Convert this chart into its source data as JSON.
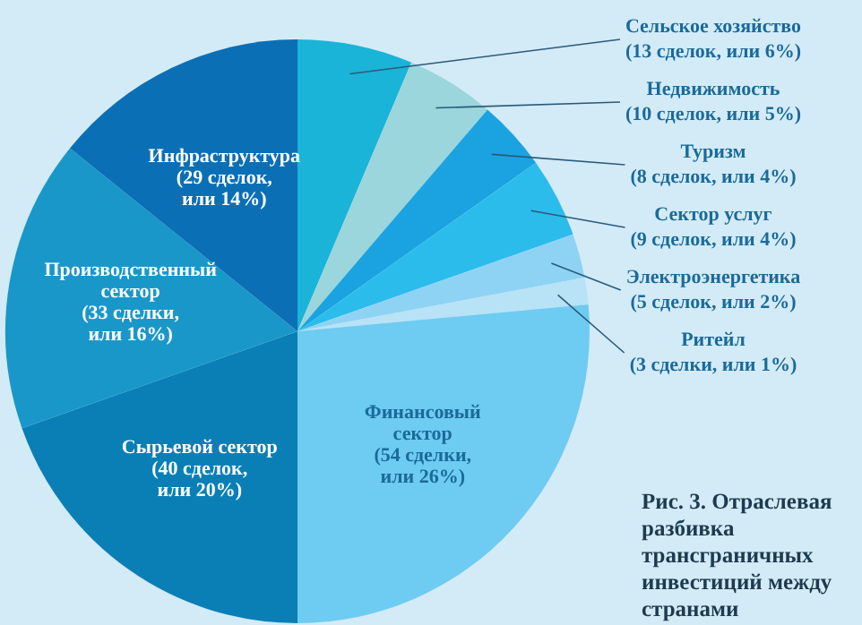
{
  "chart_data": {
    "type": "pie",
    "categories": [
      "Сельское хозяйство",
      "Недвижимость",
      "Туризм",
      "Сектор услуг",
      "Электроэнергетика",
      "Ритейл",
      "Финансовый сектор",
      "Сырьевой сектор",
      "Производственный сектор",
      "Инфраструктура"
    ],
    "values": [
      13,
      10,
      8,
      9,
      5,
      3,
      54,
      40,
      33,
      29
    ],
    "value_labels": [
      "(13 сделок, или 6%)",
      "(10 сделок, или 5%)",
      "(8 сделок, или 4%)",
      "(9 сделок, или 4%)",
      "(5 сделок, или 2%)",
      "(3 сделки, или 1%)",
      "(54 сделки, или 26%)",
      "(40 сделок, или 20%)",
      "(33 сделки, или 16%)",
      "(29 сделок, или 14%)"
    ],
    "colors": [
      "#1ab4d8",
      "#9ad6dc",
      "#1aa3e0",
      "#2cbcec",
      "#8fd3f4",
      "#b8e2f6",
      "#6ecbf2",
      "#0a7fb6",
      "#1a97c9",
      "#0b6fb5"
    ],
    "annotations": [
      "Рис. 3. Отраслевая разбивка трансграничных инвестиций между странами"
    ],
    "legend": false
  }
}
